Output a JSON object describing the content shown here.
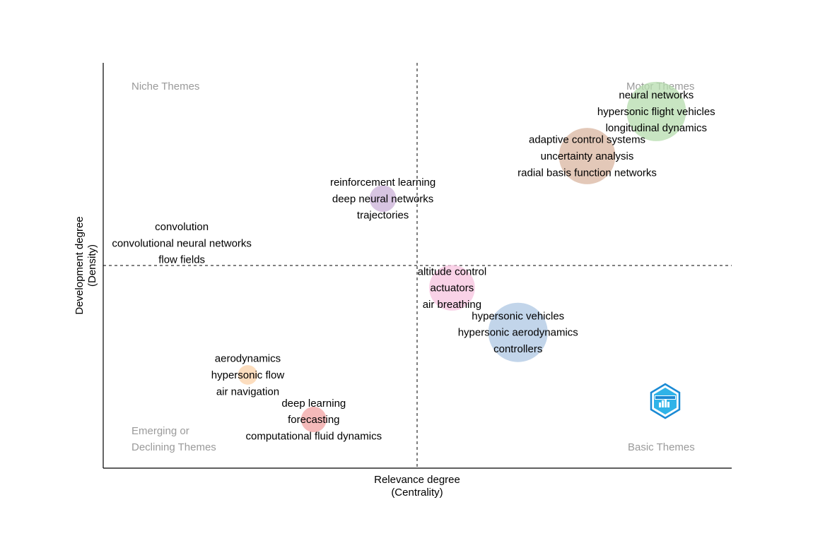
{
  "chart_data": {
    "type": "scatter",
    "title": "",
    "xlabel": "Relevance degree",
    "xlabel_sub": "(Centrality)",
    "ylabel": "Development degree",
    "ylabel_sub": "(Density)",
    "x_divider": "median",
    "y_divider": "median",
    "quadrant_labels": {
      "top_left": "Niche Themes",
      "top_right": "Motor Themes",
      "bottom_left_1": "Emerging or",
      "bottom_left_2": "Declining Themes",
      "bottom_right": "Basic Themes"
    },
    "clusters": [
      {
        "x": 0.88,
        "y": 0.88,
        "size": 1.0,
        "color": "#b5dcae",
        "terms": [
          "neural networks",
          "hypersonic flight vehicles",
          "longitudinal dynamics"
        ]
      },
      {
        "x": 0.77,
        "y": 0.77,
        "size": 0.95,
        "color": "#d9b6a0",
        "terms": [
          "adaptive control systems",
          "uncertainty analysis",
          "radial basis function networks"
        ]
      },
      {
        "x": 0.445,
        "y": 0.665,
        "size": 0.45,
        "color": "#cbb2d8",
        "terms": [
          "reinforcement learning",
          "deep neural networks",
          "trajectories"
        ]
      },
      {
        "x": 0.125,
        "y": 0.555,
        "size": 0.0,
        "color": "#d0d0d0",
        "terms": [
          "convolution",
          "convolutional neural networks",
          "flow fields"
        ]
      },
      {
        "x": 0.555,
        "y": 0.445,
        "size": 0.77,
        "color": "#f7c3df",
        "terms": [
          "altitude control",
          "actuators",
          "air breathing"
        ]
      },
      {
        "x": 0.66,
        "y": 0.335,
        "size": 1.0,
        "color": "#aec7e3",
        "terms": [
          "hypersonic vehicles",
          "hypersonic aerodynamics",
          "controllers"
        ]
      },
      {
        "x": 0.23,
        "y": 0.23,
        "size": 0.33,
        "color": "#fbd2a8",
        "terms": [
          "aerodynamics",
          "hypersonic flow",
          "air navigation"
        ]
      },
      {
        "x": 0.335,
        "y": 0.12,
        "size": 0.43,
        "color": "#f2a3a3",
        "terms": [
          "deep learning",
          "forecasting",
          "computational fluid dynamics"
        ]
      }
    ]
  },
  "logo": {
    "name": "bibliometrix-logo-icon",
    "colors": [
      "#1a8ad4",
      "#2fb3e8"
    ]
  }
}
